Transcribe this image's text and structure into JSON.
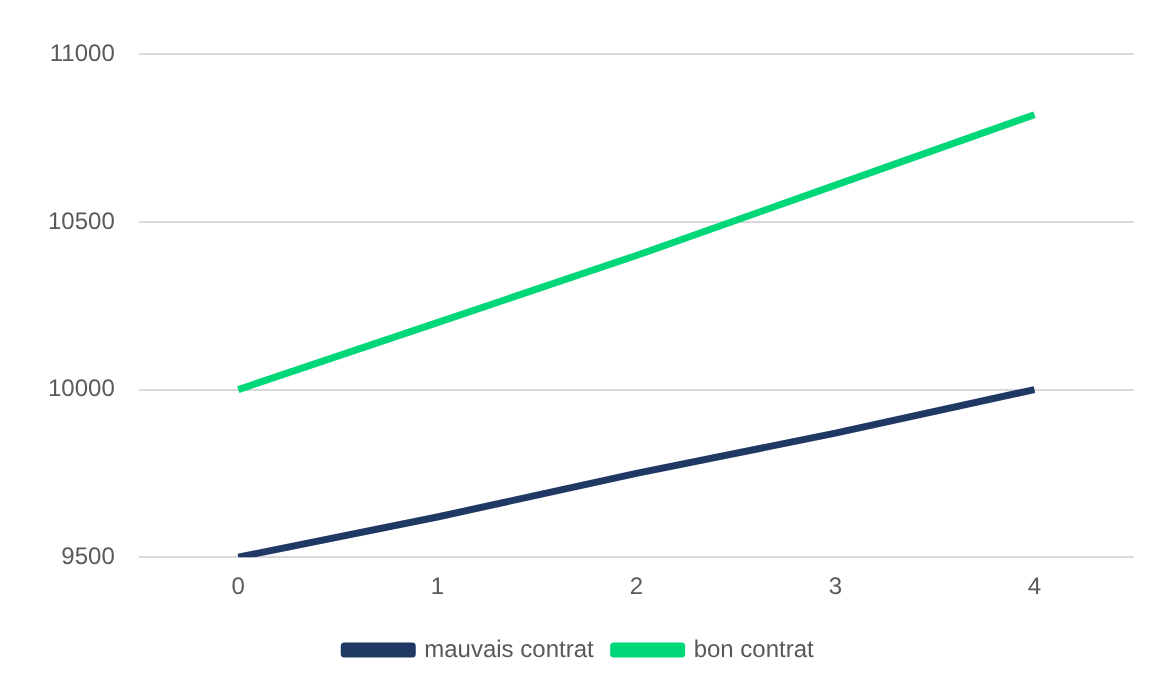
{
  "chart_data": {
    "type": "line",
    "categories": [
      "0",
      "1",
      "2",
      "3",
      "4"
    ],
    "series": [
      {
        "name": "mauvais contrat",
        "color": "#1f3864",
        "values": [
          9500,
          9620,
          9750,
          9870,
          10000
        ]
      },
      {
        "name": "bon contrat",
        "color": "#00d778",
        "values": [
          10000,
          10200,
          10400,
          10610,
          10820
        ]
      }
    ],
    "ylim": [
      9500,
      11000
    ],
    "yticks": [
      9500,
      10000,
      10500,
      11000
    ],
    "grid": "y",
    "legend": "bottom",
    "marker": "none",
    "line_style": "solid"
  }
}
